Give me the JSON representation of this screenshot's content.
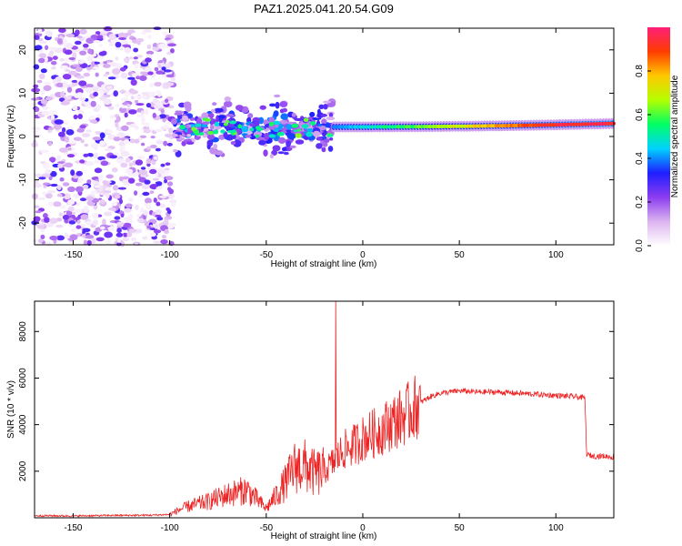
{
  "figure_title": "PAZ1.2025.041.20.54.G09",
  "chart_data": [
    {
      "type": "heatmap",
      "title": "",
      "xlabel": "Height of straight line (km)",
      "ylabel": "Frequency (Hz)",
      "xlim": [
        -170,
        130
      ],
      "ylim": [
        -25,
        25
      ],
      "xticks": [
        -150,
        -100,
        -50,
        0,
        50,
        100
      ],
      "yticks": [
        -20,
        -10,
        0,
        10,
        20
      ],
      "colorbar": {
        "label": "Normalized spectral amplitude",
        "range": [
          0,
          1
        ],
        "ticks": [
          0.0,
          0.2,
          0.4,
          0.6,
          0.8
        ],
        "colors": [
          "#ffffff",
          "#dcb4f0",
          "#8c3cf0",
          "#1e1eff",
          "#00d2ff",
          "#00ff64",
          "#b4ff00",
          "#ffc800",
          "#ff3c00",
          "#ff1e78"
        ]
      },
      "regions": [
        {
          "name": "noise",
          "x": [
            -170,
            -98
          ],
          "freq": [
            -25,
            25
          ],
          "amplitude": [
            0.02,
            0.2
          ]
        },
        {
          "name": "transition",
          "x": [
            -98,
            -15
          ],
          "freq_center": 2,
          "freq_spread": 8,
          "amplitude": [
            0.1,
            0.45
          ]
        },
        {
          "name": "tone",
          "x": [
            -15,
            130
          ],
          "freq_center": 2.2,
          "amplitude": [
            0.4,
            0.95
          ]
        }
      ]
    },
    {
      "type": "line",
      "title": "",
      "xlabel": "Height of straight line (km)",
      "ylabel": "SNR (10 * v/v)",
      "xlim": [
        -170,
        130
      ],
      "ylim": [
        0,
        9300
      ],
      "xticks": [
        -150,
        -100,
        -50,
        0,
        50,
        100
      ],
      "yticks": [
        2000,
        4000,
        6000,
        8000
      ],
      "color": "#ee2222",
      "series": [
        {
          "x": [
            -170,
            -150,
            -130,
            -110,
            -100,
            -95,
            -90,
            -80,
            -70,
            -60,
            -50,
            -40,
            -35,
            -30,
            -25,
            -20,
            -15,
            -10,
            -5,
            0,
            5,
            10,
            15,
            20,
            25,
            30,
            35,
            40,
            50,
            60,
            70,
            80,
            90,
            100,
            110,
            115,
            116,
            120,
            125,
            130
          ],
          "y": [
            90,
            80,
            100,
            110,
            140,
            350,
            500,
            700,
            1000,
            1200,
            400,
            1500,
            2200,
            2200,
            1900,
            2000,
            2400,
            2900,
            3100,
            3400,
            3600,
            3800,
            4100,
            4300,
            4600,
            4950,
            5200,
            5350,
            5450,
            5400,
            5400,
            5350,
            5300,
            5250,
            5200,
            5150,
            2700,
            2650,
            2650,
            2600
          ]
        }
      ],
      "spike": {
        "x": -14,
        "y": 9300
      }
    }
  ]
}
